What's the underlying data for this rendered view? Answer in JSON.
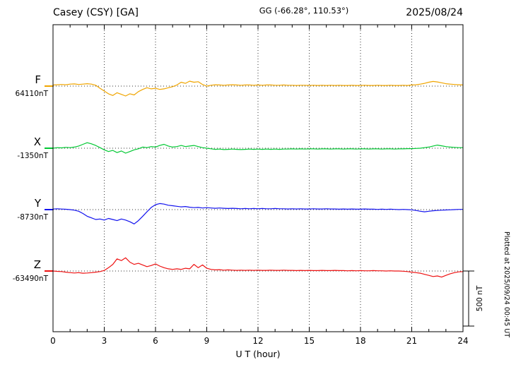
{
  "chart_data": {
    "type": "line",
    "title": "Casey (CSY)  [GA]",
    "subtitle": "GG (-66.28°, 110.53°)",
    "date": "2025/08/24",
    "plotted_note": "Plotted at 2025/09/24 00:45 UT",
    "xlabel": "U T (hour)",
    "x_unit": "hour",
    "x_range": [
      0,
      24
    ],
    "x_ticks": [
      0,
      3,
      6,
      9,
      12,
      15,
      18,
      21,
      24
    ],
    "x_step": 0.25,
    "grid": "dotted vertical lines every 3 hours; dotted horizontal baseline per component",
    "scale_bar": {
      "label": "500 nT",
      "value_nT": 500
    },
    "values_unit": "nT offset from component baseline",
    "series": [
      {
        "name": "F",
        "color": "#f0a500",
        "baseline_nT": 64110,
        "baseline_label": "64110nT",
        "values": [
          10,
          12,
          15,
          12,
          18,
          20,
          15,
          18,
          22,
          18,
          8,
          -20,
          -45,
          -70,
          -85,
          -60,
          -75,
          -90,
          -70,
          -80,
          -50,
          -30,
          -15,
          -25,
          -20,
          -30,
          -25,
          -15,
          -5,
          10,
          35,
          25,
          45,
          35,
          40,
          15,
          0,
          8,
          12,
          10,
          8,
          10,
          12,
          10,
          8,
          10,
          10,
          8,
          10,
          8,
          10,
          10,
          8,
          8,
          10,
          8,
          8,
          6,
          8,
          8,
          6,
          8,
          6,
          8,
          6,
          8,
          6,
          8,
          6,
          6,
          8,
          6,
          6,
          8,
          6,
          6,
          8,
          6,
          6,
          8,
          6,
          6,
          8,
          6,
          10,
          12,
          18,
          25,
          35,
          42,
          38,
          30,
          22,
          18,
          15,
          12,
          10
        ]
      },
      {
        "name": "X",
        "color": "#00c832",
        "baseline_nT": -1350,
        "baseline_label": "-1350nT",
        "values": [
          0,
          5,
          3,
          8,
          5,
          10,
          20,
          35,
          50,
          40,
          25,
          5,
          -15,
          -30,
          -20,
          -40,
          -25,
          -45,
          -30,
          -15,
          -5,
          10,
          5,
          15,
          10,
          25,
          35,
          20,
          10,
          15,
          25,
          15,
          20,
          25,
          15,
          5,
          0,
          -5,
          -10,
          -8,
          -12,
          -10,
          -8,
          -10,
          -12,
          -10,
          -8,
          -10,
          -8,
          -10,
          -8,
          -10,
          -8,
          -10,
          -8,
          -8,
          -6,
          -8,
          -6,
          -8,
          -6,
          -6,
          -8,
          -6,
          -6,
          -8,
          -6,
          -6,
          -8,
          -6,
          -6,
          -8,
          -6,
          -6,
          -8,
          -6,
          -6,
          -8,
          -6,
          -6,
          -8,
          -6,
          -6,
          -4,
          -4,
          -2,
          0,
          5,
          10,
          20,
          28,
          22,
          15,
          10,
          8,
          5,
          5
        ]
      },
      {
        "name": "Y",
        "color": "#1212ee",
        "baseline_nT": -8730,
        "baseline_label": "-8730nT",
        "values": [
          5,
          8,
          5,
          3,
          0,
          -5,
          -15,
          -35,
          -60,
          -75,
          -90,
          -85,
          -95,
          -80,
          -90,
          -100,
          -85,
          -95,
          -110,
          -130,
          -100,
          -60,
          -20,
          20,
          45,
          55,
          50,
          40,
          35,
          30,
          25,
          28,
          22,
          18,
          20,
          15,
          18,
          15,
          12,
          15,
          12,
          10,
          12,
          10,
          8,
          10,
          8,
          10,
          8,
          10,
          8,
          8,
          10,
          8,
          8,
          6,
          8,
          6,
          8,
          6,
          6,
          8,
          6,
          6,
          8,
          6,
          6,
          4,
          6,
          4,
          6,
          4,
          4,
          6,
          4,
          4,
          2,
          4,
          2,
          4,
          2,
          0,
          2,
          0,
          -2,
          -8,
          -15,
          -20,
          -15,
          -10,
          -8,
          -5,
          -3,
          -2,
          0,
          2,
          2
        ]
      },
      {
        "name": "Z",
        "color": "#ee1111",
        "baseline_nT": -63490,
        "baseline_label": "-63490nT",
        "values": [
          0,
          -3,
          -5,
          -10,
          -15,
          -18,
          -15,
          -20,
          -18,
          -15,
          -10,
          -5,
          5,
          30,
          60,
          110,
          95,
          120,
          80,
          60,
          70,
          55,
          40,
          50,
          65,
          45,
          30,
          20,
          15,
          20,
          15,
          25,
          20,
          60,
          30,
          55,
          25,
          15,
          10,
          12,
          8,
          10,
          8,
          6,
          8,
          6,
          8,
          6,
          8,
          6,
          6,
          8,
          6,
          6,
          8,
          6,
          6,
          4,
          6,
          4,
          6,
          4,
          4,
          6,
          4,
          4,
          6,
          4,
          4,
          2,
          4,
          2,
          4,
          2,
          2,
          4,
          2,
          2,
          0,
          2,
          0,
          0,
          -2,
          -5,
          -10,
          -15,
          -20,
          -30,
          -40,
          -50,
          -45,
          -55,
          -40,
          -25,
          -15,
          -8,
          -5
        ]
      }
    ]
  }
}
